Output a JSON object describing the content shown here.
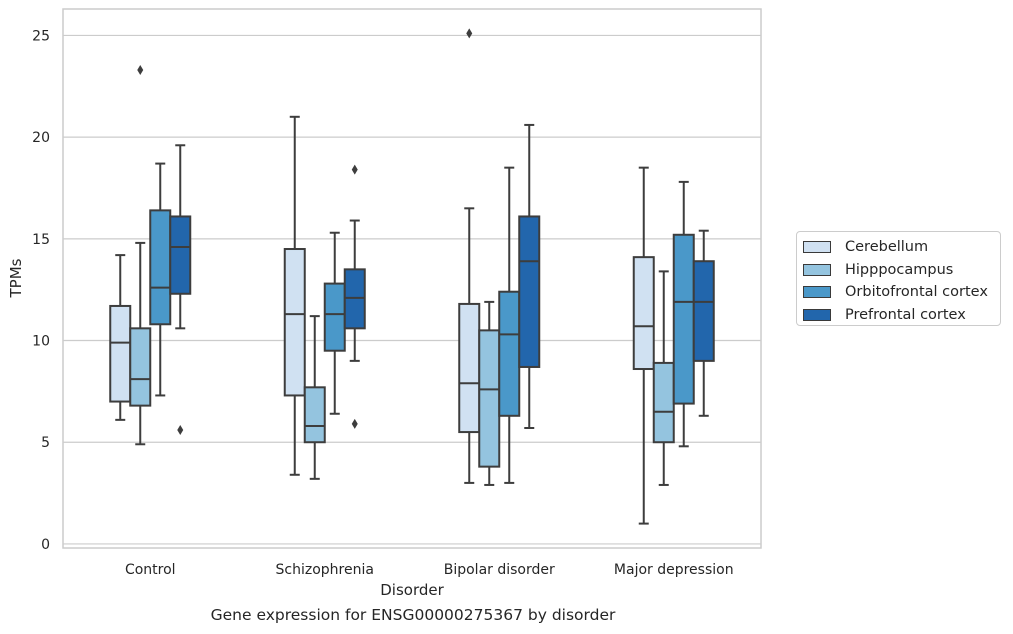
{
  "chart_data": {
    "type": "box",
    "caption": "Gene expression for ENSG00000275367 by disorder",
    "xlabel": "Disorder",
    "ylabel": "TPMs",
    "ylim": [
      -0.2,
      26.3
    ],
    "yticks": [
      0,
      5,
      10,
      15,
      20,
      25
    ],
    "grid": true,
    "legend_placement": "right",
    "categories": [
      "Control",
      "Schizophrenia",
      "Bipolar disorder",
      "Major depression"
    ],
    "series": [
      {
        "name": "Cerebellum",
        "color": "#d0e1f2",
        "boxes": [
          {
            "whislo": 6.1,
            "q1": 7.0,
            "med": 9.9,
            "q3": 11.7,
            "whishi": 14.2,
            "fliers": []
          },
          {
            "whislo": 3.4,
            "q1": 7.3,
            "med": 11.3,
            "q3": 14.5,
            "whishi": 21.0,
            "fliers": []
          },
          {
            "whislo": 3.0,
            "q1": 5.5,
            "med": 7.9,
            "q3": 11.8,
            "whishi": 16.5,
            "fliers": [
              25.1
            ]
          },
          {
            "whislo": 1.0,
            "q1": 8.6,
            "med": 10.7,
            "q3": 14.1,
            "whishi": 18.5,
            "fliers": []
          }
        ]
      },
      {
        "name": "Hipppocampus",
        "color": "#94c4df",
        "boxes": [
          {
            "whislo": 4.9,
            "q1": 6.8,
            "med": 8.1,
            "q3": 10.6,
            "whishi": 14.8,
            "fliers": [
              23.3
            ]
          },
          {
            "whislo": 3.2,
            "q1": 5.0,
            "med": 5.8,
            "q3": 7.7,
            "whishi": 11.2,
            "fliers": []
          },
          {
            "whislo": 2.9,
            "q1": 3.8,
            "med": 7.6,
            "q3": 10.5,
            "whishi": 11.9,
            "fliers": []
          },
          {
            "whislo": 2.9,
            "q1": 5.0,
            "med": 6.5,
            "q3": 8.9,
            "whishi": 13.4,
            "fliers": []
          }
        ]
      },
      {
        "name": "Orbitofrontal cortex",
        "color": "#4a98c9",
        "boxes": [
          {
            "whislo": 7.3,
            "q1": 10.8,
            "med": 12.6,
            "q3": 16.4,
            "whishi": 18.7,
            "fliers": []
          },
          {
            "whislo": 6.4,
            "q1": 9.5,
            "med": 11.3,
            "q3": 12.8,
            "whishi": 15.3,
            "fliers": []
          },
          {
            "whislo": 3.0,
            "q1": 6.3,
            "med": 10.3,
            "q3": 12.4,
            "whishi": 18.5,
            "fliers": []
          },
          {
            "whislo": 4.8,
            "q1": 6.9,
            "med": 11.9,
            "q3": 15.2,
            "whishi": 17.8,
            "fliers": []
          }
        ]
      },
      {
        "name": "Prefrontal cortex",
        "color": "#2266ac",
        "boxes": [
          {
            "whislo": 10.6,
            "q1": 12.3,
            "med": 14.6,
            "q3": 16.1,
            "whishi": 19.6,
            "fliers": [
              5.6
            ]
          },
          {
            "whislo": 9.0,
            "q1": 10.6,
            "med": 12.1,
            "q3": 13.5,
            "whishi": 15.9,
            "fliers": [
              18.4,
              5.9
            ]
          },
          {
            "whislo": 5.7,
            "q1": 8.7,
            "med": 13.9,
            "q3": 16.1,
            "whishi": 20.6,
            "fliers": []
          },
          {
            "whislo": 6.3,
            "q1": 9.0,
            "med": 11.9,
            "q3": 13.9,
            "whishi": 15.4,
            "fliers": []
          }
        ]
      }
    ]
  }
}
